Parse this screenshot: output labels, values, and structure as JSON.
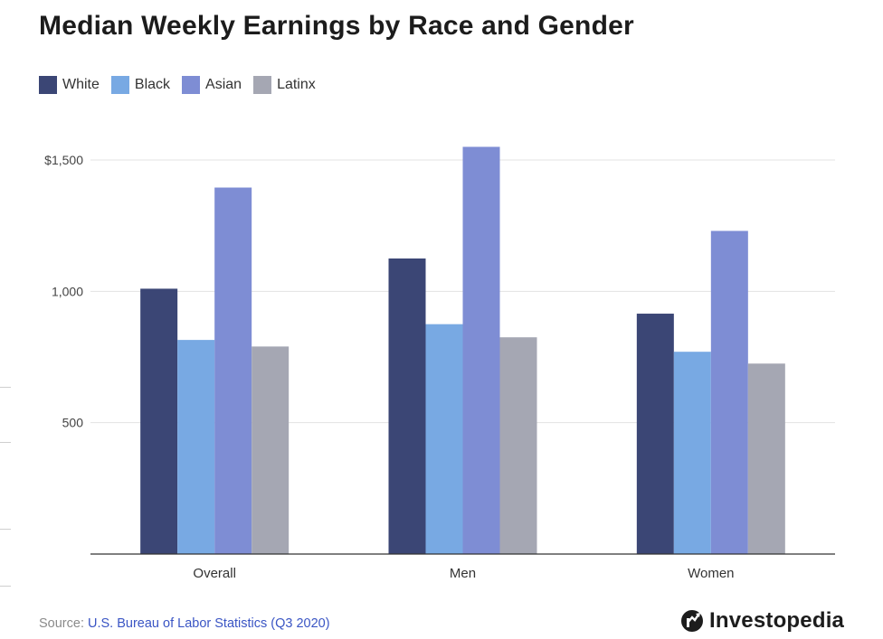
{
  "chart_data": {
    "type": "bar",
    "title": "Median Weekly Earnings by Race and Gender",
    "categories": [
      "Overall",
      "Men",
      "Women"
    ],
    "series": [
      {
        "name": "White",
        "color": "#3b4675",
        "values": [
          1010,
          1125,
          915
        ]
      },
      {
        "name": "Black",
        "color": "#78a9e3",
        "values": [
          815,
          875,
          770
        ]
      },
      {
        "name": "Asian",
        "color": "#7e8dd4",
        "values": [
          1395,
          1550,
          1230
        ]
      },
      {
        "name": "Latinx",
        "color": "#a5a7b3",
        "values": [
          790,
          825,
          725
        ]
      }
    ],
    "ylim": [
      0,
      1500
    ],
    "yticks": [
      {
        "value": 500,
        "label": "500"
      },
      {
        "value": 1000,
        "label": "1,000"
      },
      {
        "value": 1500,
        "label": "$1,500"
      }
    ],
    "xlabel": "",
    "ylabel": "",
    "grid": true,
    "legend": "top-left"
  },
  "source": {
    "prefix": "Source: ",
    "link_text": "U.S. Bureau of Labor Statistics (Q3 2020)"
  },
  "brand": {
    "name": "Investopedia"
  }
}
